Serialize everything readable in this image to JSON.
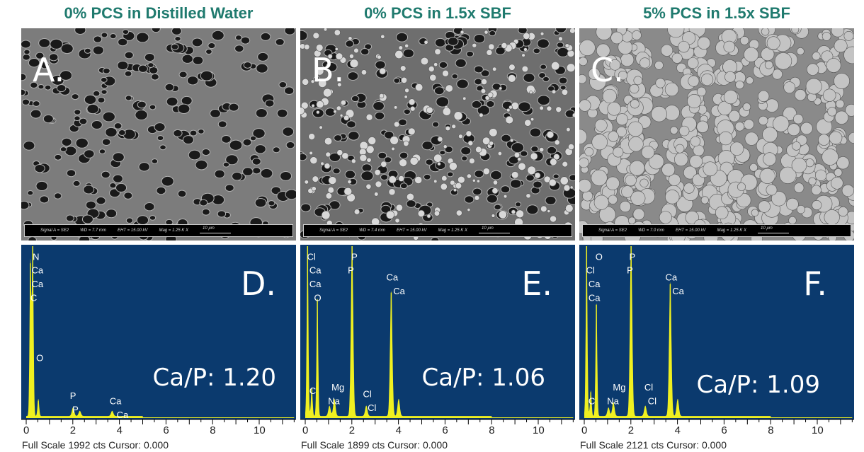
{
  "panels": [
    {
      "title": "0% PCS in Distilled Water",
      "sem_letter": "A.",
      "sem_info": {
        "signal": "Signal A = SE2",
        "wd": "WD = 7.7 mm",
        "eht": "EHT = 15.00 kV",
        "mag": "Mag =  1.25 K X",
        "scale": "10 µm"
      },
      "spectrum_letter": "D.",
      "ratio": "Ca/P: 1.20",
      "full_scale": "Full Scale 1992 cts Cursor: 0.000"
    },
    {
      "title": "0% PCS in 1.5x SBF",
      "sem_letter": "B.",
      "sem_info": {
        "signal": "Signal A = SE2",
        "wd": "WD = 7.4 mm",
        "eht": "EHT = 15.00 kV",
        "mag": "Mag =  1.25 K X",
        "scale": "10 µm"
      },
      "spectrum_letter": "E.",
      "ratio": "Ca/P: 1.06",
      "full_scale": "Full Scale 1899 cts Cursor: 0.000"
    },
    {
      "title": "5% PCS in 1.5x SBF",
      "sem_letter": "C.",
      "sem_info": {
        "signal": "Signal A = SE2",
        "wd": "WD = 7.0 mm",
        "eht": "EHT = 15.00 kV",
        "mag": "Mag =  1.25 K X",
        "scale": "10 µm"
      },
      "spectrum_letter": "F.",
      "ratio": "Ca/P: 1.09",
      "full_scale": "Full Scale 2121 cts Cursor: 0.000"
    }
  ],
  "colors": {
    "title": "#1f7a6e",
    "spectrum_bg": "#0b3a6e",
    "spectrum_line": "#f0f020"
  },
  "chart_data": [
    {
      "type": "line",
      "xlim": [
        0,
        11.5
      ],
      "xticks": [
        "0",
        "2",
        "4",
        "6",
        "8",
        "10"
      ],
      "peaks_keV": [
        0.18,
        0.28,
        0.52,
        2.01,
        2.3,
        3.69
      ],
      "rel_intensity": [
        0.9,
        1.0,
        0.1,
        0.05,
        0.03,
        0.03
      ],
      "labels": [
        {
          "text": "N",
          "x": 0.4,
          "y": 0.97
        },
        {
          "text": "Ca",
          "x": 0.35,
          "y": 0.89
        },
        {
          "text": "Ca",
          "x": 0.35,
          "y": 0.81
        },
        {
          "text": "C",
          "x": 0.3,
          "y": 0.73
        },
        {
          "text": "O",
          "x": 0.55,
          "y": 0.38
        },
        {
          "text": "P",
          "x": 2.0,
          "y": 0.16
        },
        {
          "text": "P",
          "x": 2.1,
          "y": 0.08
        },
        {
          "text": "Ca",
          "x": 3.7,
          "y": 0.13
        },
        {
          "text": "Ca",
          "x": 4.0,
          "y": 0.05
        }
      ]
    },
    {
      "type": "line",
      "xlim": [
        0,
        11.5
      ],
      "xticks": [
        "0",
        "2",
        "4",
        "6",
        "8",
        "10"
      ],
      "peaks_keV": [
        0.1,
        0.28,
        0.52,
        1.04,
        1.25,
        2.01,
        2.62,
        3.69,
        4.01
      ],
      "rel_intensity": [
        1.0,
        0.17,
        0.69,
        0.06,
        0.1,
        1.0,
        0.06,
        0.73,
        0.1
      ],
      "labels": [
        {
          "text": "Cl",
          "x": 0.2,
          "y": 0.97
        },
        {
          "text": "Ca",
          "x": 0.3,
          "y": 0.89
        },
        {
          "text": "Ca",
          "x": 0.3,
          "y": 0.81
        },
        {
          "text": "O",
          "x": 0.5,
          "y": 0.73
        },
        {
          "text": "C",
          "x": 0.3,
          "y": 0.19
        },
        {
          "text": "Mg",
          "x": 1.25,
          "y": 0.21
        },
        {
          "text": "Na",
          "x": 1.1,
          "y": 0.13
        },
        {
          "text": "P",
          "x": 2.1,
          "y": 0.97
        },
        {
          "text": "P",
          "x": 1.95,
          "y": 0.89
        },
        {
          "text": "Ca",
          "x": 3.6,
          "y": 0.85
        },
        {
          "text": "Ca",
          "x": 3.9,
          "y": 0.77
        },
        {
          "text": "Cl",
          "x": 2.6,
          "y": 0.17
        },
        {
          "text": "Cl",
          "x": 2.8,
          "y": 0.09
        }
      ]
    },
    {
      "type": "line",
      "xlim": [
        0,
        11.5
      ],
      "xticks": [
        "0",
        "2",
        "4",
        "6",
        "8",
        "10"
      ],
      "peaks_keV": [
        0.1,
        0.28,
        0.52,
        1.04,
        1.25,
        2.01,
        2.62,
        3.69,
        4.01
      ],
      "rel_intensity": [
        1.0,
        0.15,
        0.66,
        0.05,
        0.08,
        1.0,
        0.06,
        0.78,
        0.1
      ],
      "labels": [
        {
          "text": "O",
          "x": 0.6,
          "y": 0.97
        },
        {
          "text": "Cl",
          "x": 0.2,
          "y": 0.89
        },
        {
          "text": "Ca",
          "x": 0.3,
          "y": 0.81
        },
        {
          "text": "Ca",
          "x": 0.3,
          "y": 0.73
        },
        {
          "text": "C",
          "x": 0.3,
          "y": 0.13
        },
        {
          "text": "Mg",
          "x": 1.35,
          "y": 0.21
        },
        {
          "text": "Na",
          "x": 1.1,
          "y": 0.13
        },
        {
          "text": "P",
          "x": 2.05,
          "y": 0.97
        },
        {
          "text": "P",
          "x": 1.95,
          "y": 0.89
        },
        {
          "text": "Ca",
          "x": 3.6,
          "y": 0.85
        },
        {
          "text": "Ca",
          "x": 3.9,
          "y": 0.77
        },
        {
          "text": "Cl",
          "x": 2.7,
          "y": 0.21
        },
        {
          "text": "Cl",
          "x": 2.85,
          "y": 0.13
        }
      ]
    }
  ]
}
